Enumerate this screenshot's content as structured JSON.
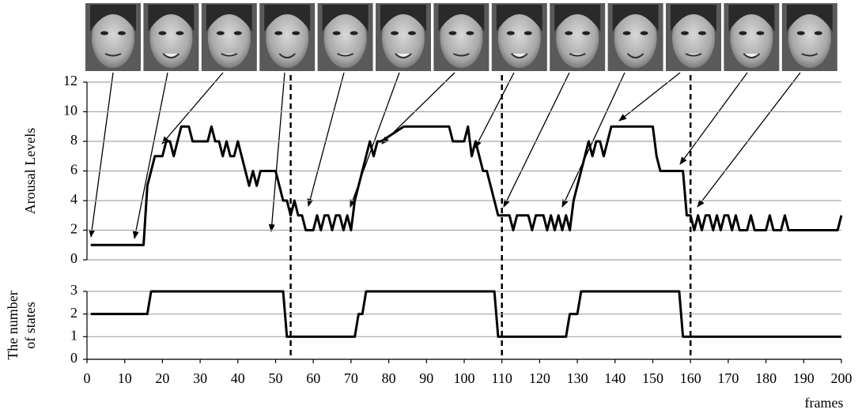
{
  "chart_data": [
    {
      "type": "line",
      "y_label": "Arousal Levels",
      "xlim": [
        0,
        200
      ],
      "ylim": [
        0,
        12
      ],
      "yticks": [
        0,
        2,
        4,
        6,
        8,
        10,
        12
      ],
      "grid": true,
      "color": "#000000",
      "x": [
        1,
        15,
        16,
        17,
        18,
        20,
        21,
        22,
        23,
        24,
        25,
        27,
        28,
        32,
        33,
        34,
        35,
        36,
        37,
        38,
        39,
        40,
        41,
        42,
        43,
        44,
        45,
        46,
        47,
        50,
        51,
        52,
        53,
        54,
        55,
        56,
        57,
        58,
        60,
        61,
        62,
        63,
        64,
        65,
        66,
        67,
        68,
        69,
        70,
        71,
        72,
        73,
        74,
        75,
        76,
        77,
        78,
        84,
        96,
        97,
        100,
        101,
        102,
        103,
        104,
        105,
        106,
        107,
        108,
        109,
        112,
        113,
        114,
        117,
        118,
        119,
        121,
        122,
        123,
        124,
        125,
        126,
        127,
        128,
        129,
        130,
        131,
        132,
        133,
        134,
        135,
        136,
        137,
        138,
        139,
        150,
        151,
        152,
        158,
        159,
        160,
        161,
        162,
        163,
        164,
        165,
        166,
        167,
        168,
        169,
        170,
        171,
        172,
        173,
        175,
        176,
        177,
        180,
        181,
        182,
        184,
        185,
        186,
        199,
        200
      ],
      "values": [
        1,
        1,
        5,
        6,
        7,
        7,
        8,
        8,
        7,
        8,
        9,
        9,
        8,
        8,
        9,
        8,
        8,
        7,
        8,
        7,
        7,
        8,
        7,
        6,
        5,
        6,
        5,
        6,
        6,
        6,
        5,
        4,
        4,
        3,
        4,
        3,
        3,
        2,
        2,
        3,
        2,
        3,
        3,
        2,
        3,
        3,
        2,
        3,
        2,
        4,
        5,
        6,
        7,
        8,
        7,
        8,
        8,
        9,
        9,
        8,
        8,
        9,
        7,
        8,
        7,
        6,
        6,
        5,
        4,
        3,
        3,
        2,
        3,
        3,
        2,
        3,
        3,
        2,
        3,
        2,
        3,
        2,
        3,
        2,
        4,
        5,
        6,
        7,
        8,
        7,
        8,
        8,
        7,
        8,
        9,
        9,
        7,
        6,
        6,
        3,
        3,
        2,
        3,
        2,
        3,
        3,
        2,
        3,
        2,
        3,
        3,
        2,
        3,
        2,
        2,
        3,
        2,
        2,
        3,
        2,
        2,
        3,
        2,
        2,
        3
      ],
      "markers_x": [
        54,
        110,
        160
      ]
    },
    {
      "type": "line",
      "y_label": [
        "The number",
        "of states"
      ],
      "x_label": "frames",
      "xlim": [
        0,
        200
      ],
      "ylim": [
        0,
        3
      ],
      "yticks": [
        0,
        1,
        2,
        3
      ],
      "grid": true,
      "color": "#000000",
      "xticks": [
        0,
        10,
        20,
        30,
        40,
        50,
        60,
        70,
        80,
        90,
        100,
        110,
        120,
        130,
        140,
        150,
        160,
        170,
        180,
        190,
        200
      ],
      "x": [
        1,
        16,
        17,
        52,
        53,
        71,
        72,
        73,
        74,
        108,
        109,
        127,
        128,
        130,
        131,
        157,
        158,
        200
      ],
      "values": [
        2,
        2,
        3,
        3,
        1,
        1,
        2,
        2,
        3,
        3,
        1,
        1,
        2,
        2,
        3,
        3,
        1,
        1
      ]
    }
  ]
}
